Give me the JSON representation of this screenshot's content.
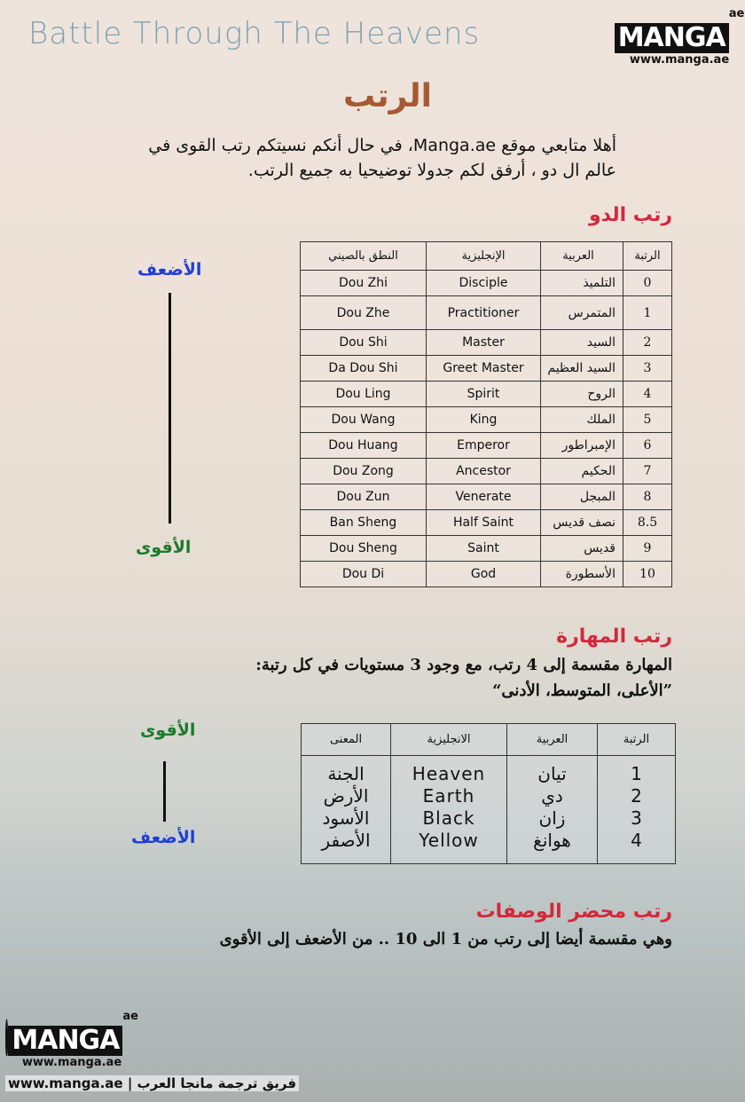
{
  "series_title": "Battle Through The Heavens",
  "logo": {
    "word": "MANGA",
    "suffix": "ae",
    "url": "www.manga.ae"
  },
  "title": "الرتب",
  "intro": "أهلا متابعي موقع Manga.ae، في حال أنكم نسيتكم رتب القوى في عالم ال دو ، أرفق لكم جدولا توضيحيا به جميع الرتب.",
  "dou_section": {
    "heading": "رتب الدو",
    "weakest": "الأضعف",
    "strongest": "الأقوى",
    "headers": [
      "الرتبة",
      "العربية",
      "الإنجليزية",
      "النطق بالصيني"
    ],
    "rows": [
      [
        "0",
        "التلميذ",
        "Disciple",
        "Dou Zhi"
      ],
      [
        "1",
        "المتمرس",
        "Practitioner",
        "Dou Zhe"
      ],
      [
        "2",
        "السيد",
        "Master",
        "Dou Shi"
      ],
      [
        "3",
        "السيد العظيم",
        "Greet Master",
        "Da Dou Shi"
      ],
      [
        "4",
        "الروح",
        "Spirit",
        "Dou Ling"
      ],
      [
        "5",
        "الملك",
        "King",
        "Dou Wang"
      ],
      [
        "6",
        "الإمبراطور",
        "Emperor",
        "Dou Huang"
      ],
      [
        "7",
        "الحكيم",
        "Ancestor",
        "Dou Zong"
      ],
      [
        "8",
        "المبجل",
        "Venerate",
        "Dou Zun"
      ],
      [
        "8.5",
        "نصف قديس",
        "Half Saint",
        "Ban Sheng"
      ],
      [
        "9",
        "قديس",
        "Saint",
        "Dou Sheng"
      ],
      [
        "10",
        "الأسطورة",
        "God",
        "Dou Di"
      ]
    ]
  },
  "skill_section": {
    "heading": "رتب المهارة",
    "text1": "المهارة مقسمة إلى 4 رتب، مع وجود 3 مستويات في كل رتبة:",
    "text2": "”الأعلى، المتوسط، الأدنى“",
    "strongest": "الأقوى",
    "weakest": "الأضعف",
    "headers": [
      "الرتبة",
      "العربية",
      "الانجليزية",
      "المعنى"
    ],
    "ranks": [
      "1",
      "2",
      "3",
      "4"
    ],
    "arabic": [
      "تيان",
      "دي",
      "زان",
      "هوانغ"
    ],
    "english": [
      "Heaven",
      "Earth",
      "Black",
      "Yellow"
    ],
    "meaning": [
      "الجنة",
      "الأرض",
      "الأسود",
      "الأصفر"
    ]
  },
  "compendium_section": {
    "heading": "رتب محضر الوصفات",
    "text": "وهي مقسمة أيضا إلى رتب من 1 الى 10 .. من الأضعف إلى الأقوى"
  },
  "footer": {
    "text": "www.manga.ae | فريق ترجمة مانجا العرب"
  }
}
